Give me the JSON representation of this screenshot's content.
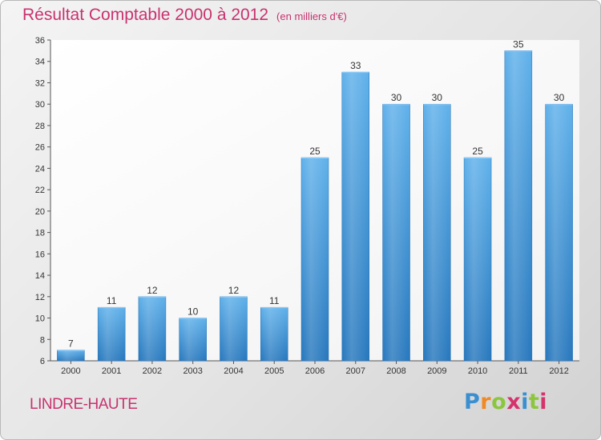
{
  "chart_data": {
    "type": "bar",
    "title": "Résultat Comptable 2000 à 2012",
    "subtitle": "(en milliers d'€)",
    "categories": [
      "2000",
      "2001",
      "2002",
      "2003",
      "2004",
      "2005",
      "2006",
      "2007",
      "2008",
      "2009",
      "2010",
      "2011",
      "2012"
    ],
    "values": [
      7,
      11,
      12,
      10,
      12,
      11,
      25,
      33,
      30,
      30,
      25,
      35,
      30
    ],
    "ylim": [
      6,
      36
    ],
    "yticks": [
      6,
      8,
      10,
      12,
      14,
      16,
      18,
      20,
      22,
      24,
      26,
      28,
      30,
      32,
      34,
      36
    ],
    "xlabel": "",
    "ylabel": "",
    "grid": false,
    "bar_color": "#3d8fd6"
  },
  "place": "LINDRE-HAUTE",
  "logo": {
    "text": "Proxiti",
    "letter_colors": [
      "#3a8fd0",
      "#f08a24",
      "#8cc63f",
      "#d6336c",
      "#3a8fd0",
      "#8cc63f",
      "#d6336c"
    ]
  },
  "colors": {
    "accent": "#c8326f",
    "bar": "#3d8fd6"
  }
}
